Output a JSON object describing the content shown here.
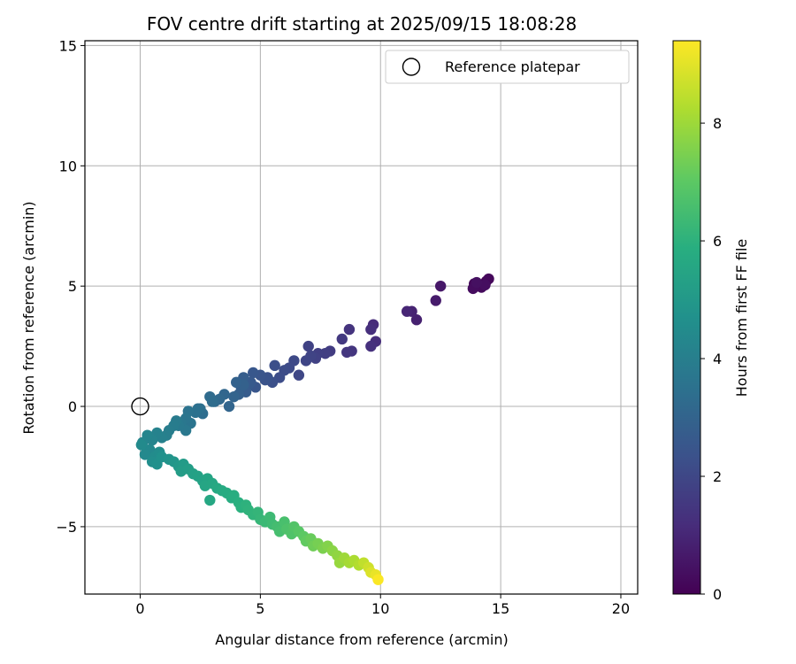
{
  "chart_data": {
    "type": "scatter",
    "title": "FOV centre drift starting at 2025/09/15 18:08:28",
    "xlabel": "Angular distance from reference (arcmin)",
    "ylabel": "Rotation from reference (arcmin)",
    "xlim": [
      -2.3,
      20.7
    ],
    "ylim": [
      -7.8,
      15.2
    ],
    "xticks": [
      "0",
      "5",
      "10",
      "15",
      "20"
    ],
    "yticks": [
      "−5",
      "0",
      "5",
      "10",
      "15"
    ],
    "grid": true,
    "legend": {
      "position": "top-right",
      "entries": [
        "Reference platepar"
      ]
    },
    "reference_point": {
      "x": 0,
      "y": 0
    },
    "colorbar": {
      "label": "Hours from first FF file",
      "colormap": "viridis",
      "range": [
        0,
        9.4
      ],
      "ticks": [
        "0",
        "2",
        "4",
        "6",
        "8"
      ]
    },
    "series": [
      {
        "color_by": "hours",
        "points": [
          {
            "x": 14.4,
            "y": 5.2,
            "h": 0.05
          },
          {
            "x": 14.1,
            "y": 5.0,
            "h": 0.1
          },
          {
            "x": 13.9,
            "y": 5.1,
            "h": 0.15
          },
          {
            "x": 14.5,
            "y": 5.3,
            "h": 0.2
          },
          {
            "x": 14.2,
            "y": 4.95,
            "h": 0.25
          },
          {
            "x": 13.85,
            "y": 4.9,
            "h": 0.3
          },
          {
            "x": 14.35,
            "y": 5.05,
            "h": 0.35
          },
          {
            "x": 14.0,
            "y": 5.15,
            "h": 0.4
          },
          {
            "x": 12.5,
            "y": 5.0,
            "h": 0.6
          },
          {
            "x": 12.3,
            "y": 4.4,
            "h": 0.7
          },
          {
            "x": 11.5,
            "y": 3.6,
            "h": 0.85
          },
          {
            "x": 11.3,
            "y": 3.95,
            "h": 0.9
          },
          {
            "x": 11.1,
            "y": 3.95,
            "h": 1.0
          },
          {
            "x": 9.7,
            "y": 3.4,
            "h": 1.15
          },
          {
            "x": 9.8,
            "y": 2.7,
            "h": 1.2
          },
          {
            "x": 9.6,
            "y": 3.2,
            "h": 1.25
          },
          {
            "x": 9.6,
            "y": 2.5,
            "h": 1.3
          },
          {
            "x": 8.7,
            "y": 3.2,
            "h": 1.4
          },
          {
            "x": 8.8,
            "y": 2.3,
            "h": 1.45
          },
          {
            "x": 8.6,
            "y": 2.25,
            "h": 1.5
          },
          {
            "x": 8.4,
            "y": 2.8,
            "h": 1.55
          },
          {
            "x": 7.9,
            "y": 2.3,
            "h": 1.65
          },
          {
            "x": 7.7,
            "y": 2.2,
            "h": 1.7
          },
          {
            "x": 7.4,
            "y": 2.2,
            "h": 1.75
          },
          {
            "x": 7.3,
            "y": 2.0,
            "h": 1.8
          },
          {
            "x": 7.0,
            "y": 2.5,
            "h": 1.85
          },
          {
            "x": 7.1,
            "y": 2.1,
            "h": 1.9
          },
          {
            "x": 6.9,
            "y": 1.9,
            "h": 1.95
          },
          {
            "x": 6.6,
            "y": 1.3,
            "h": 2.0
          },
          {
            "x": 6.4,
            "y": 1.9,
            "h": 2.05
          },
          {
            "x": 6.2,
            "y": 1.6,
            "h": 2.1
          },
          {
            "x": 6.0,
            "y": 1.5,
            "h": 2.15
          },
          {
            "x": 5.8,
            "y": 1.2,
            "h": 2.2
          },
          {
            "x": 5.6,
            "y": 1.7,
            "h": 2.25
          },
          {
            "x": 5.5,
            "y": 1.0,
            "h": 2.3
          },
          {
            "x": 5.3,
            "y": 1.2,
            "h": 2.35
          },
          {
            "x": 5.2,
            "y": 1.1,
            "h": 2.4
          },
          {
            "x": 5.0,
            "y": 1.3,
            "h": 2.45
          },
          {
            "x": 4.8,
            "y": 0.8,
            "h": 2.5
          },
          {
            "x": 4.7,
            "y": 1.4,
            "h": 2.55
          },
          {
            "x": 4.6,
            "y": 1.0,
            "h": 2.6
          },
          {
            "x": 4.5,
            "y": 0.9,
            "h": 2.65
          },
          {
            "x": 4.4,
            "y": 0.6,
            "h": 2.7
          },
          {
            "x": 4.3,
            "y": 1.2,
            "h": 2.75
          },
          {
            "x": 4.2,
            "y": 0.8,
            "h": 2.8
          },
          {
            "x": 4.1,
            "y": 0.5,
            "h": 2.85
          },
          {
            "x": 4.3,
            "y": 0.9,
            "h": 2.9
          },
          {
            "x": 4.0,
            "y": 1.0,
            "h": 2.95
          },
          {
            "x": 3.9,
            "y": 0.4,
            "h": 3.0
          },
          {
            "x": 3.7,
            "y": 0.0,
            "h": 3.05
          },
          {
            "x": 3.5,
            "y": 0.5,
            "h": 3.1
          },
          {
            "x": 3.3,
            "y": 0.3,
            "h": 3.15
          },
          {
            "x": 3.1,
            "y": 0.2,
            "h": 3.2
          },
          {
            "x": 2.9,
            "y": 0.4,
            "h": 3.25
          },
          {
            "x": 3.0,
            "y": 0.2,
            "h": 3.3
          },
          {
            "x": 2.6,
            "y": -0.3,
            "h": 3.35
          },
          {
            "x": 2.5,
            "y": -0.1,
            "h": 3.4
          },
          {
            "x": 2.4,
            "y": -0.1,
            "h": 3.45
          },
          {
            "x": 2.3,
            "y": -0.25,
            "h": 3.5
          },
          {
            "x": 2.0,
            "y": -0.2,
            "h": 3.55
          },
          {
            "x": 2.1,
            "y": -0.7,
            "h": 3.6
          },
          {
            "x": 1.9,
            "y": -0.5,
            "h": 3.65
          },
          {
            "x": 1.7,
            "y": -0.7,
            "h": 3.7
          },
          {
            "x": 1.9,
            "y": -1.0,
            "h": 3.75
          },
          {
            "x": 1.6,
            "y": -0.8,
            "h": 3.8
          },
          {
            "x": 1.5,
            "y": -0.6,
            "h": 3.85
          },
          {
            "x": 1.4,
            "y": -0.8,
            "h": 3.9
          },
          {
            "x": 1.2,
            "y": -1.0,
            "h": 3.95
          },
          {
            "x": 1.1,
            "y": -1.2,
            "h": 4.0
          },
          {
            "x": 0.9,
            "y": -1.3,
            "h": 4.1
          },
          {
            "x": 0.7,
            "y": -1.1,
            "h": 4.15
          },
          {
            "x": 0.5,
            "y": -1.4,
            "h": 4.2
          },
          {
            "x": 0.3,
            "y": -1.2,
            "h": 4.25
          },
          {
            "x": 0.1,
            "y": -1.5,
            "h": 4.3
          },
          {
            "x": 0.4,
            "y": -1.8,
            "h": 4.35
          },
          {
            "x": 0.2,
            "y": -2.0,
            "h": 4.4
          },
          {
            "x": 0.05,
            "y": -1.6,
            "h": 4.45
          },
          {
            "x": 0.6,
            "y": -2.1,
            "h": 4.5
          },
          {
            "x": 0.8,
            "y": -1.9,
            "h": 4.55
          },
          {
            "x": 0.5,
            "y": -2.3,
            "h": 4.6
          },
          {
            "x": 0.7,
            "y": -2.4,
            "h": 4.65
          },
          {
            "x": 0.9,
            "y": -2.1,
            "h": 4.7
          },
          {
            "x": 1.2,
            "y": -2.2,
            "h": 4.8
          },
          {
            "x": 1.4,
            "y": -2.3,
            "h": 4.9
          },
          {
            "x": 1.6,
            "y": -2.5,
            "h": 5.0
          },
          {
            "x": 1.8,
            "y": -2.4,
            "h": 5.1
          },
          {
            "x": 1.7,
            "y": -2.7,
            "h": 5.15
          },
          {
            "x": 2.0,
            "y": -2.6,
            "h": 5.2
          },
          {
            "x": 2.2,
            "y": -2.8,
            "h": 5.3
          },
          {
            "x": 2.4,
            "y": -2.9,
            "h": 5.35
          },
          {
            "x": 2.6,
            "y": -3.1,
            "h": 5.4
          },
          {
            "x": 2.8,
            "y": -3.0,
            "h": 5.45
          },
          {
            "x": 2.7,
            "y": -3.3,
            "h": 5.5
          },
          {
            "x": 3.0,
            "y": -3.2,
            "h": 5.55
          },
          {
            "x": 2.9,
            "y": -3.9,
            "h": 5.6
          },
          {
            "x": 3.2,
            "y": -3.4,
            "h": 5.65
          },
          {
            "x": 3.4,
            "y": -3.5,
            "h": 5.7
          },
          {
            "x": 3.6,
            "y": -3.6,
            "h": 5.75
          },
          {
            "x": 3.8,
            "y": -3.8,
            "h": 5.8
          },
          {
            "x": 3.9,
            "y": -3.7,
            "h": 5.85
          },
          {
            "x": 4.1,
            "y": -4.0,
            "h": 5.9
          },
          {
            "x": 4.2,
            "y": -4.2,
            "h": 5.95
          },
          {
            "x": 4.4,
            "y": -4.1,
            "h": 6.0
          },
          {
            "x": 4.5,
            "y": -4.3,
            "h": 6.05
          },
          {
            "x": 4.7,
            "y": -4.5,
            "h": 6.1
          },
          {
            "x": 4.9,
            "y": -4.4,
            "h": 6.15
          },
          {
            "x": 5.0,
            "y": -4.7,
            "h": 6.2
          },
          {
            "x": 5.2,
            "y": -4.8,
            "h": 6.3
          },
          {
            "x": 5.4,
            "y": -4.6,
            "h": 6.35
          },
          {
            "x": 5.5,
            "y": -4.9,
            "h": 6.4
          },
          {
            "x": 5.7,
            "y": -5.0,
            "h": 6.5
          },
          {
            "x": 5.8,
            "y": -5.2,
            "h": 6.55
          },
          {
            "x": 6.0,
            "y": -4.8,
            "h": 6.6
          },
          {
            "x": 6.1,
            "y": -5.1,
            "h": 6.7
          },
          {
            "x": 6.3,
            "y": -5.3,
            "h": 6.75
          },
          {
            "x": 6.4,
            "y": -5.0,
            "h": 6.8
          },
          {
            "x": 6.6,
            "y": -5.2,
            "h": 6.9
          },
          {
            "x": 6.8,
            "y": -5.4,
            "h": 7.0
          },
          {
            "x": 6.9,
            "y": -5.6,
            "h": 7.1
          },
          {
            "x": 7.1,
            "y": -5.5,
            "h": 7.2
          },
          {
            "x": 7.2,
            "y": -5.8,
            "h": 7.3
          },
          {
            "x": 7.4,
            "y": -5.7,
            "h": 7.4
          },
          {
            "x": 7.6,
            "y": -5.9,
            "h": 7.5
          },
          {
            "x": 7.8,
            "y": -5.8,
            "h": 7.6
          },
          {
            "x": 8.0,
            "y": -6.0,
            "h": 7.7
          },
          {
            "x": 8.2,
            "y": -6.2,
            "h": 7.8
          },
          {
            "x": 8.3,
            "y": -6.5,
            "h": 7.9
          },
          {
            "x": 8.5,
            "y": -6.3,
            "h": 8.0
          },
          {
            "x": 8.7,
            "y": -6.5,
            "h": 8.1
          },
          {
            "x": 8.9,
            "y": -6.4,
            "h": 8.2
          },
          {
            "x": 9.1,
            "y": -6.6,
            "h": 8.3
          },
          {
            "x": 9.3,
            "y": -6.5,
            "h": 8.5
          },
          {
            "x": 9.5,
            "y": -6.7,
            "h": 8.7
          },
          {
            "x": 9.6,
            "y": -6.9,
            "h": 8.9
          },
          {
            "x": 9.8,
            "y": -7.0,
            "h": 9.1
          },
          {
            "x": 9.9,
            "y": -7.2,
            "h": 9.35
          }
        ]
      }
    ]
  }
}
